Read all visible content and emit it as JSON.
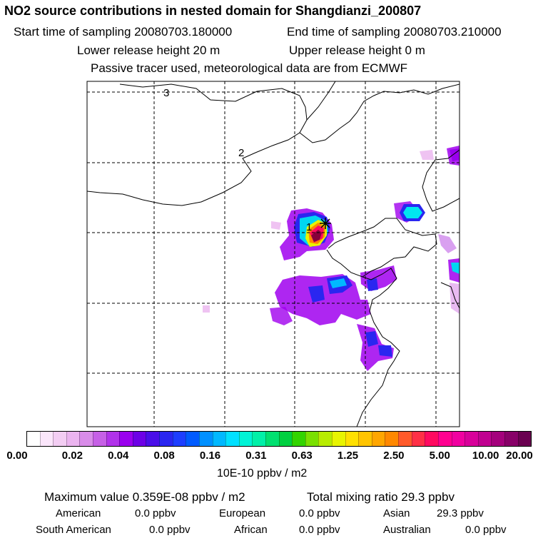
{
  "header": {
    "title": "NO2 source contributions in nested domain for Shangdianzi_200807",
    "start_time": "Start time of sampling 20080703.180000",
    "end_time": "End time of sampling 20080703.210000",
    "lower_release": "Lower release height   20 m",
    "upper_release": "Upper release height    0 m",
    "note": "Passive tracer used, meteorological data are from ECMWF"
  },
  "chart_data": {
    "type": "heatmap",
    "title": "NO2 source contributions in nested domain for Shangdianzi_200807",
    "colorbar_unit": "10E-10 ppbv / m2",
    "colorbar_ticks": [
      "0.00",
      "0.02",
      "0.04",
      "0.08",
      "0.16",
      "0.31",
      "0.63",
      "1.25",
      "2.50",
      "5.00",
      "10.00",
      "20.00"
    ],
    "colorbar_colors": [
      "#ffffff",
      "#fbe6fb",
      "#f3cdf3",
      "#ebb4ef",
      "#d98ce9",
      "#c660e6",
      "#b133ea",
      "#9a00ee",
      "#6d00e6",
      "#4a0ee8",
      "#2a26f0",
      "#1d3eff",
      "#005bff",
      "#0090ff",
      "#00b8ff",
      "#00e0ff",
      "#00f3d6",
      "#00f0a8",
      "#00e070",
      "#00d040",
      "#33d400",
      "#7ae000",
      "#b8ec00",
      "#e8f400",
      "#ffe000",
      "#ffc400",
      "#ffa600",
      "#ff8800",
      "#ff5a2a",
      "#ff3046",
      "#ff0a60",
      "#ff0090",
      "#f000a0",
      "#d8009a",
      "#c00090",
      "#a4007c",
      "#880068",
      "#6a0050"
    ],
    "grid_labels": [
      "1",
      "2",
      "3"
    ],
    "receptor_marker": "*"
  },
  "stats": {
    "max_value": "Maximum value  0.359E-08 ppbv / m2",
    "total_mixing": "Total mixing ratio       29.3 ppbv"
  },
  "regions": [
    {
      "name": "American",
      "value": "0.0 ppbv"
    },
    {
      "name": "European",
      "value": "0.0 ppbv"
    },
    {
      "name": "Asian",
      "value": "29.3 ppbv"
    },
    {
      "name": "South American",
      "value": "0.0 ppbv"
    },
    {
      "name": "African",
      "value": "0.0 ppbv"
    },
    {
      "name": "Australian",
      "value": "0.0 ppbv"
    }
  ]
}
